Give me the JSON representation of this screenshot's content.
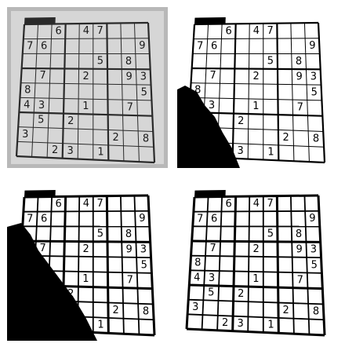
{
  "grid_title": "",
  "puzzle": {
    "rows": [
      [
        0,
        0,
        6,
        0,
        4,
        7,
        0,
        0,
        0
      ],
      [
        7,
        6,
        0,
        0,
        0,
        0,
        0,
        0,
        9
      ],
      [
        0,
        0,
        0,
        0,
        0,
        5,
        0,
        8,
        0
      ],
      [
        0,
        7,
        0,
        0,
        2,
        0,
        0,
        9,
        3
      ],
      [
        8,
        0,
        0,
        0,
        0,
        0,
        0,
        0,
        5
      ],
      [
        4,
        3,
        0,
        0,
        1,
        0,
        0,
        7,
        0
      ],
      [
        0,
        5,
        0,
        2,
        0,
        0,
        0,
        0,
        0
      ],
      [
        3,
        0,
        0,
        0,
        0,
        0,
        2,
        0,
        8
      ],
      [
        0,
        0,
        2,
        3,
        0,
        1,
        0,
        0,
        0
      ]
    ]
  },
  "panels": [
    {
      "style": "grayscale-photo",
      "bg": "#d6d6d6",
      "line": "#2a2a2a",
      "ink": "#1a1a1a",
      "shadow": false,
      "thick_lines": false
    },
    {
      "style": "global-threshold",
      "bg": "#ffffff",
      "line": "#000000",
      "ink": "#000000",
      "shadow": true,
      "thick_lines": false
    },
    {
      "style": "otsu-threshold",
      "bg": "#ffffff",
      "line": "#000000",
      "ink": "#000000",
      "shadow": true,
      "thick_lines": true
    },
    {
      "style": "adaptive-threshold",
      "bg": "#ffffff",
      "line": "#000000",
      "ink": "#000000",
      "shadow": false,
      "thick_lines": true
    }
  ]
}
